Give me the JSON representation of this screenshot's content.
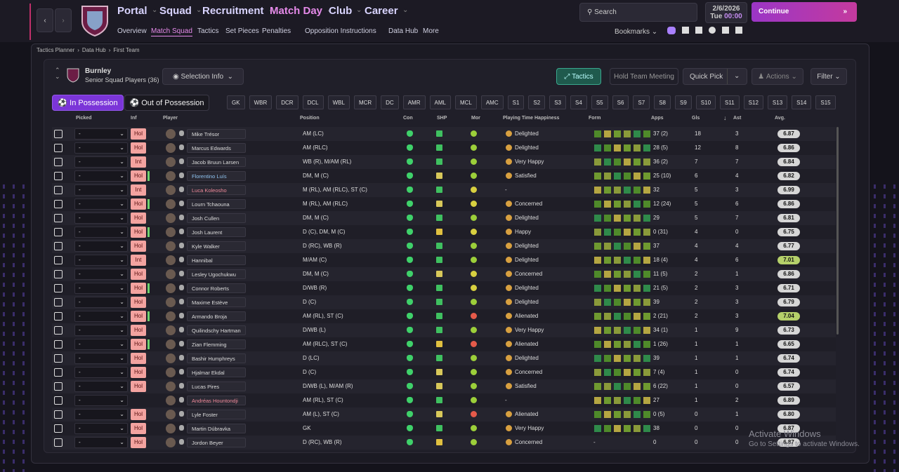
{
  "nav": {
    "menus": [
      "Portal",
      "Squad",
      "Recruitment",
      "Match Day",
      "Club",
      "Career"
    ],
    "submenu": [
      "Overview",
      "Match Squad",
      "Tactics",
      "Set Pieces",
      "Penalties",
      "Opposition Instructions",
      "Data Hub",
      "More"
    ],
    "search": "Search",
    "date": "2/6/2026",
    "weekday": "Tue",
    "time": "00:00",
    "continue": "Continue",
    "bookmarks": "Bookmarks"
  },
  "breadcrumb": [
    "Tactics Planner",
    "Data Hub",
    "First Team"
  ],
  "panel": {
    "club": "Burnley",
    "subtitle": "Senior Squad Players (36)",
    "selection_info": "Selection Info",
    "tactics": "Tactics",
    "hold_meeting": "Hold Team Meeting",
    "quick_pick": "Quick Pick",
    "actions": "Actions",
    "filter": "Filter"
  },
  "tabs": [
    "In Possession",
    "Out of Possession"
  ],
  "positions": [
    "GK",
    "WBR",
    "DCR",
    "DCL",
    "WBL",
    "MCR",
    "DC",
    "AMR",
    "AML",
    "MCL",
    "AMC",
    "S1",
    "S2",
    "S3",
    "S4",
    "S5",
    "S6",
    "S7",
    "S8",
    "S9",
    "S10",
    "S11",
    "S12",
    "S13",
    "S14",
    "S15"
  ],
  "table": {
    "columns": [
      "Picked",
      "Inf",
      "Player",
      "Position",
      "Con",
      "SHP",
      "Mor",
      "Playing Time Happiness",
      "Form",
      "Apps",
      "Gls",
      "Ast",
      "Avg."
    ],
    "rows": [
      {
        "picked": "-",
        "inf": "Hol",
        "player": "Mike Trésor",
        "position": "AM (LC)",
        "happiness": "Delighted",
        "apps": "37 (2)",
        "gls": 18,
        "ast": 3,
        "avg": "6.87"
      },
      {
        "picked": "-",
        "inf": "Hol",
        "player": "Marcus Edwards",
        "position": "AM (RLC)",
        "happiness": "Delighted",
        "apps": "28 (5)",
        "gls": 12,
        "ast": 8,
        "avg": "6.86"
      },
      {
        "picked": "-",
        "inf": "Int",
        "player": "Jacob Bruun Larsen",
        "position": "WB (R), M/AM (RL)",
        "happiness": "Very Happy",
        "apps": "36 (2)",
        "gls": 7,
        "ast": 7,
        "avg": "6.84"
      },
      {
        "picked": "-",
        "inf": "Hol",
        "player": "Florentino Luís",
        "position": "DM, M (C)",
        "happiness": "Satisfied",
        "apps": "25 (10)",
        "gls": 6,
        "ast": 4,
        "avg": "6.82"
      },
      {
        "picked": "-",
        "inf": "Int",
        "player": "Luca Koleosho",
        "position": "M (RL), AM (RLC), ST (C)",
        "happiness": "-",
        "apps": "32",
        "gls": 5,
        "ast": 3,
        "avg": "6.99"
      },
      {
        "picked": "-",
        "inf": "Hol",
        "player": "Lourn Tchaouna",
        "position": "M (RL), AM (RLC)",
        "happiness": "Concerned",
        "apps": "12 (24)",
        "gls": 5,
        "ast": 6,
        "avg": "6.86"
      },
      {
        "picked": "-",
        "inf": "Hol",
        "player": "Josh Cullen",
        "position": "DM, M (C)",
        "happiness": "Delighted",
        "apps": "29",
        "gls": 5,
        "ast": 7,
        "avg": "6.81"
      },
      {
        "picked": "-",
        "inf": "Hol",
        "player": "Josh Laurent",
        "position": "D (C), DM, M (C)",
        "happiness": "Happy",
        "apps": "0 (31)",
        "gls": 4,
        "ast": 0,
        "avg": "6.75"
      },
      {
        "picked": "-",
        "inf": "Hol",
        "player": "Kyle Walker",
        "position": "D (RC), WB (R)",
        "happiness": "Delighted",
        "apps": "37",
        "gls": 4,
        "ast": 4,
        "avg": "6.77"
      },
      {
        "picked": "-",
        "inf": "Int",
        "player": "Hannibal",
        "position": "M/AM (C)",
        "happiness": "Delighted",
        "apps": "18 (4)",
        "gls": 4,
        "ast": 6,
        "avg": "7.01"
      },
      {
        "picked": "-",
        "inf": "Hol",
        "player": "Lesley Ugochukwu",
        "position": "DM, M (C)",
        "happiness": "Concerned",
        "apps": "11 (5)",
        "gls": 2,
        "ast": 1,
        "avg": "6.86"
      },
      {
        "picked": "-",
        "inf": "Hol",
        "player": "Connor Roberts",
        "position": "D/WB (R)",
        "happiness": "Delighted",
        "apps": "21 (5)",
        "gls": 2,
        "ast": 3,
        "avg": "6.71"
      },
      {
        "picked": "-",
        "inf": "Hol",
        "player": "Maxime Estève",
        "position": "D (C)",
        "happiness": "Delighted",
        "apps": "39",
        "gls": 2,
        "ast": 3,
        "avg": "6.79"
      },
      {
        "picked": "-",
        "inf": "Hol",
        "player": "Armando Broja",
        "position": "AM (RL), ST (C)",
        "happiness": "Alienated",
        "apps": "2 (21)",
        "gls": 2,
        "ast": 3,
        "avg": "7.04"
      },
      {
        "picked": "-",
        "inf": "Hol",
        "player": "Quilindschy Hartman",
        "position": "D/WB (L)",
        "happiness": "Very Happy",
        "apps": "34 (1)",
        "gls": 1,
        "ast": 9,
        "avg": "6.73"
      },
      {
        "picked": "-",
        "inf": "Hol",
        "player": "Zian Flemming",
        "position": "AM (RLC), ST (C)",
        "happiness": "Alienated",
        "apps": "1 (26)",
        "gls": 1,
        "ast": 1,
        "avg": "6.65"
      },
      {
        "picked": "-",
        "inf": "Hol",
        "player": "Bashir Humphreys",
        "position": "D (LC)",
        "happiness": "Delighted",
        "apps": "39",
        "gls": 1,
        "ast": 1,
        "avg": "6.74"
      },
      {
        "picked": "-",
        "inf": "Hol",
        "player": "Hjalmar Ekdal",
        "position": "D (C)",
        "happiness": "Concerned",
        "apps": "7 (4)",
        "gls": 1,
        "ast": 0,
        "avg": "6.74"
      },
      {
        "picked": "-",
        "inf": "Hol",
        "player": "Lucas Pires",
        "position": "D/WB (L), M/AM (R)",
        "happiness": "Satisfied",
        "apps": "6 (22)",
        "gls": 1,
        "ast": 0,
        "avg": "6.57"
      },
      {
        "picked": "-",
        "player": "Andréas Hountondji",
        "position": "AM (RL), ST (C)",
        "happiness": "-",
        "apps": "27",
        "gls": 1,
        "ast": 2,
        "avg": "6.89"
      },
      {
        "picked": "-",
        "inf": "Hol",
        "player": "Lyle Foster",
        "position": "AM (L), ST (C)",
        "happiness": "Alienated",
        "apps": "0 (5)",
        "gls": 0,
        "ast": 1,
        "avg": "6.80"
      },
      {
        "picked": "-",
        "inf": "Hol",
        "player": "Martin Dúbravka",
        "position": "GK",
        "happiness": "Very Happy",
        "apps": "38",
        "gls": 0,
        "ast": 0,
        "avg": "6.87"
      },
      {
        "picked": "-",
        "inf": "Hol",
        "player": "Jordon Beyer",
        "position": "D (RC), WB (R)",
        "happiness": "Concerned",
        "form": "-",
        "apps": "0",
        "gls": 0,
        "ast": 0,
        "avg": "6.87"
      }
    ]
  },
  "watermark": {
    "title": "Activate Windows",
    "subtitle": "Go to Settings to activate Windows."
  }
}
